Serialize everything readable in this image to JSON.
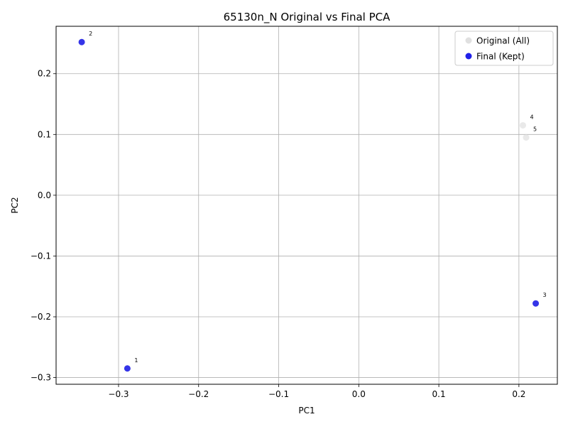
{
  "chart_data": {
    "type": "scatter",
    "title": "65130n_N Original vs Final PCA",
    "xlabel": "PC1",
    "ylabel": "PC2",
    "xlim": [
      -0.378,
      0.248
    ],
    "ylim": [
      -0.311,
      0.278
    ],
    "xticks": [
      -0.3,
      -0.2,
      -0.1,
      0.0,
      0.1,
      0.2
    ],
    "xtick_labels": [
      "−0.3",
      "−0.2",
      "−0.1",
      "0.0",
      "0.1",
      "0.2"
    ],
    "yticks": [
      -0.3,
      -0.2,
      -0.1,
      0.0,
      0.1,
      0.2
    ],
    "ytick_labels": [
      "−0.3",
      "−0.2",
      "−0.1",
      "0.0",
      "0.1",
      "0.2"
    ],
    "grid": true,
    "legend_position": "top-right",
    "series": [
      {
        "name": "Original (All)",
        "color": "#e0e0e0",
        "points": [
          {
            "label": "1",
            "x": -0.289,
            "y": -0.285
          },
          {
            "label": "2",
            "x": -0.346,
            "y": 0.252
          },
          {
            "label": "3",
            "x": 0.221,
            "y": -0.178
          },
          {
            "label": "4",
            "x": 0.205,
            "y": 0.115
          },
          {
            "label": "5",
            "x": 0.209,
            "y": 0.095
          }
        ]
      },
      {
        "name": "Final (Kept)",
        "color": "#2020e8",
        "points": [
          {
            "label": "1",
            "x": -0.289,
            "y": -0.285
          },
          {
            "label": "2",
            "x": -0.346,
            "y": 0.252
          },
          {
            "label": "3",
            "x": 0.221,
            "y": -0.178
          }
        ]
      }
    ]
  }
}
